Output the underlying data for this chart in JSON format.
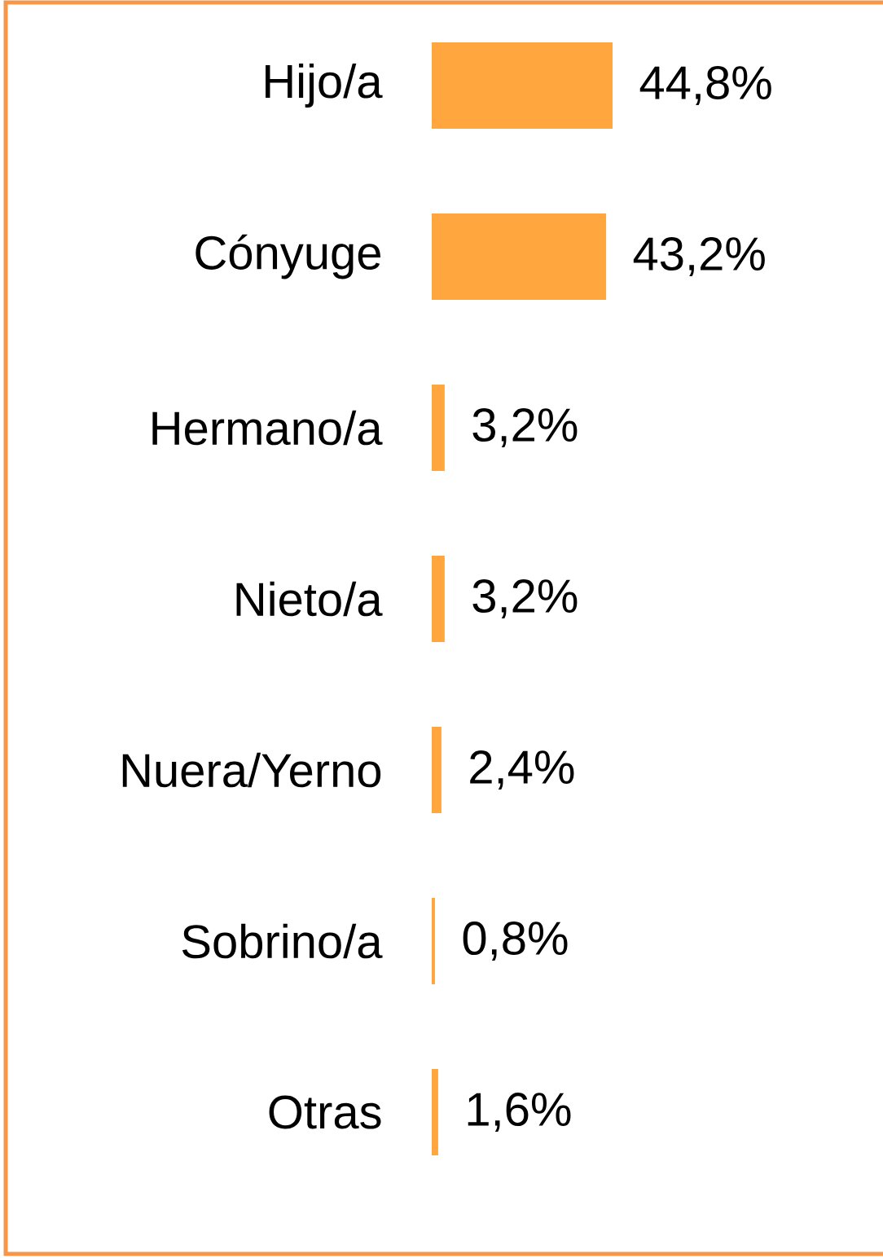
{
  "chart_data": {
    "type": "bar",
    "orientation": "horizontal",
    "categories": [
      "Hijo/a",
      "Cónyuge",
      "Hermano/a",
      "Nieto/a",
      "Nuera/Yerno",
      "Sobrino/a",
      "Otras"
    ],
    "values": [
      44.8,
      43.2,
      3.2,
      3.2,
      2.4,
      0.8,
      1.6
    ],
    "value_labels": [
      "44,8%",
      "43,2%",
      "3,2%",
      "3,2%",
      "2,4%",
      "0,8%",
      "1,6%"
    ],
    "color": "#ffa63f",
    "tick_labels": "y"
  }
}
